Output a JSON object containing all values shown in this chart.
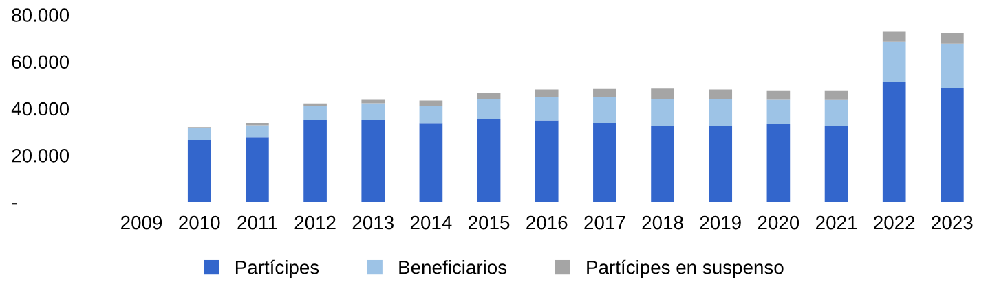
{
  "chart_data": {
    "type": "bar",
    "stacked": true,
    "categories": [
      "2009",
      "2010",
      "2011",
      "2012",
      "2013",
      "2014",
      "2015",
      "2016",
      "2017",
      "2018",
      "2019",
      "2020",
      "2021",
      "2022",
      "2023"
    ],
    "series": [
      {
        "name": "Partícipes",
        "color": "#3366cc",
        "values": [
          null,
          26500,
          27600,
          35000,
          35000,
          33500,
          35600,
          34900,
          33800,
          32700,
          32400,
          33300,
          32700,
          51200,
          48500
        ]
      },
      {
        "name": "Beneficiarios",
        "color": "#9dc3e6",
        "values": [
          null,
          5000,
          5200,
          6100,
          7200,
          7600,
          8400,
          9900,
          11000,
          11300,
          11500,
          10400,
          10900,
          17300,
          19100
        ]
      },
      {
        "name": "Partícipes en suspenso",
        "color": "#a5a5a5",
        "values": [
          null,
          500,
          800,
          1000,
          1500,
          2300,
          2700,
          3300,
          3500,
          4400,
          4200,
          4000,
          4100,
          4500,
          4600
        ]
      }
    ],
    "ylim": [
      0,
      80000
    ],
    "yticks": [
      {
        "value": 0,
        "label": "-"
      },
      {
        "value": 20000,
        "label": "20.000"
      },
      {
        "value": 40000,
        "label": "40.000"
      },
      {
        "value": 60000,
        "label": "60.000"
      },
      {
        "value": 80000,
        "label": "80.000"
      }
    ],
    "grid": false,
    "legend": "bottom"
  }
}
